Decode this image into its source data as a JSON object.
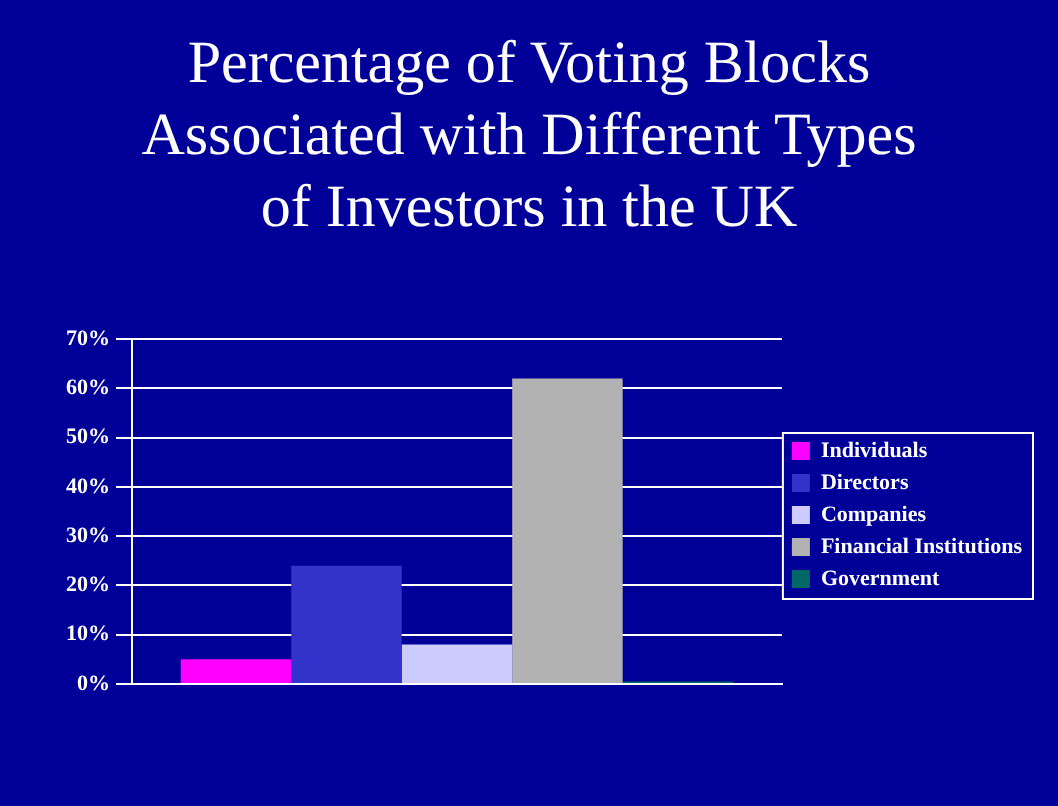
{
  "chart_data": {
    "type": "bar",
    "title": "Percentage of Voting Blocks Associated with Different Types of Investors in the UK",
    "categories": [
      null
    ],
    "series": [
      {
        "name": "Individuals",
        "color": "#ff00ff",
        "values": [
          5
        ]
      },
      {
        "name": "Directors",
        "color": "#3333cc",
        "values": [
          24
        ]
      },
      {
        "name": "Companies",
        "color": "#ccccff",
        "values": [
          8
        ]
      },
      {
        "name": "Financial Institutions",
        "color": "#b2b2b2",
        "values": [
          62
        ]
      },
      {
        "name": "Government",
        "color": "#006666",
        "values": [
          0.5
        ]
      }
    ],
    "ylim": [
      0,
      70
    ],
    "yticks": [
      {
        "value": 0,
        "label": "0%"
      },
      {
        "value": 10,
        "label": "10%"
      },
      {
        "value": 20,
        "label": "20%"
      },
      {
        "value": 30,
        "label": "30%"
      },
      {
        "value": 40,
        "label": "40%"
      },
      {
        "value": 50,
        "label": "50%"
      },
      {
        "value": 60,
        "label": "60%"
      },
      {
        "value": 70,
        "label": "70%"
      }
    ],
    "grid": "y",
    "legend": "right"
  }
}
